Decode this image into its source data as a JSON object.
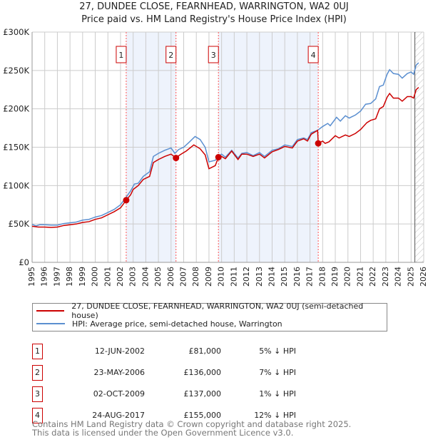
{
  "chart_data": {
    "type": "line",
    "title": "27, DUNDEE CLOSE, FEARNHEAD, WARRINGTON, WA2 0UJ",
    "subtitle": "Price paid vs. HM Land Registry's House Price Index (HPI)",
    "xlim": [
      1995,
      2026
    ],
    "ylim": [
      0,
      300000
    ],
    "yticks": [
      {
        "v": 0,
        "label": "£0"
      },
      {
        "v": 50000,
        "label": "£50K"
      },
      {
        "v": 100000,
        "label": "£100K"
      },
      {
        "v": 150000,
        "label": "£150K"
      },
      {
        "v": 200000,
        "label": "£200K"
      },
      {
        "v": 250000,
        "label": "£250K"
      },
      {
        "v": 300000,
        "label": "£300K"
      }
    ],
    "xticks": [
      "1995",
      "1996",
      "1997",
      "1998",
      "1999",
      "2000",
      "2001",
      "2002",
      "2003",
      "2004",
      "2005",
      "2006",
      "2007",
      "2008",
      "2009",
      "2010",
      "2011",
      "2012",
      "2013",
      "2014",
      "2015",
      "2016",
      "2017",
      "2018",
      "2019",
      "2020",
      "2021",
      "2022",
      "2023",
      "2024",
      "2025",
      "2026"
    ],
    "grid": true,
    "colors": {
      "property": "#cc0000",
      "hpi": "#5b8fd0",
      "shade": "#eef3fc",
      "marker": "#ff5555"
    },
    "series": [
      {
        "name": "27, DUNDEE CLOSE, FEARNHEAD, WARRINGTON, WA2 0UJ (semi-detached house)",
        "key": "property",
        "points": [
          [
            1995,
            47
          ],
          [
            1995.5,
            46
          ],
          [
            1996,
            46
          ],
          [
            1996.5,
            45.5
          ],
          [
            1997,
            46
          ],
          [
            1997.5,
            48
          ],
          [
            1998,
            49
          ],
          [
            1998.5,
            50
          ],
          [
            1999,
            52
          ],
          [
            1999.5,
            53
          ],
          [
            2000,
            56
          ],
          [
            2000.5,
            58
          ],
          [
            2001,
            62
          ],
          [
            2001.5,
            66
          ],
          [
            2002,
            71
          ],
          [
            2002.45,
            81
          ],
          [
            2002.8,
            88
          ],
          [
            2003,
            95
          ],
          [
            2003.4,
            100
          ],
          [
            2003.8,
            108
          ],
          [
            2004.3,
            112
          ],
          [
            2004.6,
            130
          ],
          [
            2005,
            134
          ],
          [
            2005.5,
            138
          ],
          [
            2006,
            141
          ],
          [
            2006.39,
            136
          ],
          [
            2006.7,
            140
          ],
          [
            2007.2,
            145
          ],
          [
            2007.8,
            153
          ],
          [
            2008.3,
            148
          ],
          [
            2008.7,
            140
          ],
          [
            2009,
            122
          ],
          [
            2009.5,
            126
          ],
          [
            2009.75,
            137
          ],
          [
            2010,
            138
          ],
          [
            2010.3,
            135
          ],
          [
            2010.8,
            145
          ],
          [
            2011.3,
            134
          ],
          [
            2011.6,
            141
          ],
          [
            2012,
            141
          ],
          [
            2012.5,
            138
          ],
          [
            2013,
            141
          ],
          [
            2013.4,
            136
          ],
          [
            2014,
            144
          ],
          [
            2014.5,
            147
          ],
          [
            2015,
            151
          ],
          [
            2015.6,
            149
          ],
          [
            2016,
            158
          ],
          [
            2016.5,
            161
          ],
          [
            2016.8,
            158
          ],
          [
            2017.1,
            167
          ],
          [
            2017.6,
            172
          ],
          [
            2017.65,
            155
          ],
          [
            2018,
            158
          ],
          [
            2018.2,
            155
          ],
          [
            2018.5,
            157
          ],
          [
            2019,
            165
          ],
          [
            2019.3,
            162
          ],
          [
            2019.8,
            166
          ],
          [
            2020.1,
            164
          ],
          [
            2020.6,
            168
          ],
          [
            2021,
            173
          ],
          [
            2021.5,
            182
          ],
          [
            2021.8,
            185
          ],
          [
            2022.2,
            187
          ],
          [
            2022.5,
            200
          ],
          [
            2022.8,
            203
          ],
          [
            2023.1,
            215
          ],
          [
            2023.3,
            220
          ],
          [
            2023.6,
            214
          ],
          [
            2024,
            214
          ],
          [
            2024.3,
            210
          ],
          [
            2024.7,
            216
          ],
          [
            2025,
            216
          ],
          [
            2025.2,
            214
          ],
          [
            2025.4,
            225
          ],
          [
            2025.6,
            228
          ]
        ]
      },
      {
        "name": "HPI: Average price, semi-detached house, Warrington",
        "key": "hpi",
        "points": [
          [
            1995,
            49.5
          ],
          [
            1995.3,
            47.5
          ],
          [
            1995.6,
            49
          ],
          [
            1996,
            49
          ],
          [
            1996.5,
            48.5
          ],
          [
            1997,
            48.5
          ],
          [
            1997.5,
            50.5
          ],
          [
            1998,
            51.5
          ],
          [
            1998.5,
            52.5
          ],
          [
            1999,
            55
          ],
          [
            1999.5,
            56
          ],
          [
            2000,
            59
          ],
          [
            2000.5,
            61
          ],
          [
            2001,
            65
          ],
          [
            2001.5,
            69
          ],
          [
            2002,
            75
          ],
          [
            2002.45,
            85
          ],
          [
            2002.8,
            93
          ],
          [
            2003.1,
            102
          ],
          [
            2003.4,
            103
          ],
          [
            2003.8,
            112
          ],
          [
            2004.3,
            118
          ],
          [
            2004.6,
            138
          ],
          [
            2005,
            142
          ],
          [
            2005.5,
            146
          ],
          [
            2006,
            149
          ],
          [
            2006.3,
            142
          ],
          [
            2006.6,
            147
          ],
          [
            2007,
            150
          ],
          [
            2007.4,
            156
          ],
          [
            2007.9,
            164
          ],
          [
            2008.3,
            160
          ],
          [
            2008.7,
            150
          ],
          [
            2009,
            131
          ],
          [
            2009.5,
            133
          ],
          [
            2009.75,
            138
          ],
          [
            2010,
            141
          ],
          [
            2010.3,
            137
          ],
          [
            2010.8,
            146
          ],
          [
            2011.3,
            136
          ],
          [
            2011.6,
            142
          ],
          [
            2012,
            143
          ],
          [
            2012.5,
            139
          ],
          [
            2013,
            143
          ],
          [
            2013.4,
            138
          ],
          [
            2014,
            146
          ],
          [
            2014.5,
            148
          ],
          [
            2015,
            153
          ],
          [
            2015.6,
            151
          ],
          [
            2016,
            160
          ],
          [
            2016.5,
            162
          ],
          [
            2016.8,
            160
          ],
          [
            2017.1,
            169
          ],
          [
            2017.6,
            172
          ],
          [
            2018,
            177
          ],
          [
            2018.4,
            181
          ],
          [
            2018.6,
            178
          ],
          [
            2019.1,
            189
          ],
          [
            2019.4,
            184
          ],
          [
            2019.8,
            191
          ],
          [
            2020.1,
            188
          ],
          [
            2020.6,
            192
          ],
          [
            2021,
            197
          ],
          [
            2021.4,
            206
          ],
          [
            2021.8,
            207
          ],
          [
            2022.2,
            213
          ],
          [
            2022.5,
            229
          ],
          [
            2022.8,
            231
          ],
          [
            2023.1,
            245
          ],
          [
            2023.3,
            251
          ],
          [
            2023.6,
            246
          ],
          [
            2024,
            245
          ],
          [
            2024.3,
            240
          ],
          [
            2024.7,
            246
          ],
          [
            2025,
            248
          ],
          [
            2025.2,
            245
          ],
          [
            2025.4,
            257
          ],
          [
            2025.6,
            260
          ]
        ]
      }
    ],
    "sales": [
      {
        "n": "1",
        "x": 2002.45,
        "y": 81,
        "date": "12-JUN-2002",
        "price": "£81,000",
        "delta": "5% ↓ HPI"
      },
      {
        "n": "2",
        "x": 2006.39,
        "y": 136,
        "date": "23-MAY-2006",
        "price": "£136,000",
        "delta": "7% ↓ HPI"
      },
      {
        "n": "3",
        "x": 2009.75,
        "y": 137,
        "date": "02-OCT-2009",
        "price": "£137,000",
        "delta": "1% ↓ HPI"
      },
      {
        "n": "4",
        "x": 2017.65,
        "y": 155,
        "date": "24-AUG-2017",
        "price": "£155,000",
        "delta": "12% ↓ HPI"
      }
    ],
    "shaded": [
      [
        2002.45,
        2006.39
      ],
      [
        2009.75,
        2017.65
      ]
    ],
    "forecast_from": 2025.3,
    "value_unit": "thousand GBP"
  },
  "footer": {
    "line1": "Contains HM Land Registry data © Crown copyright and database right 2025.",
    "line2": "This data is licensed under the Open Government Licence v3.0."
  }
}
